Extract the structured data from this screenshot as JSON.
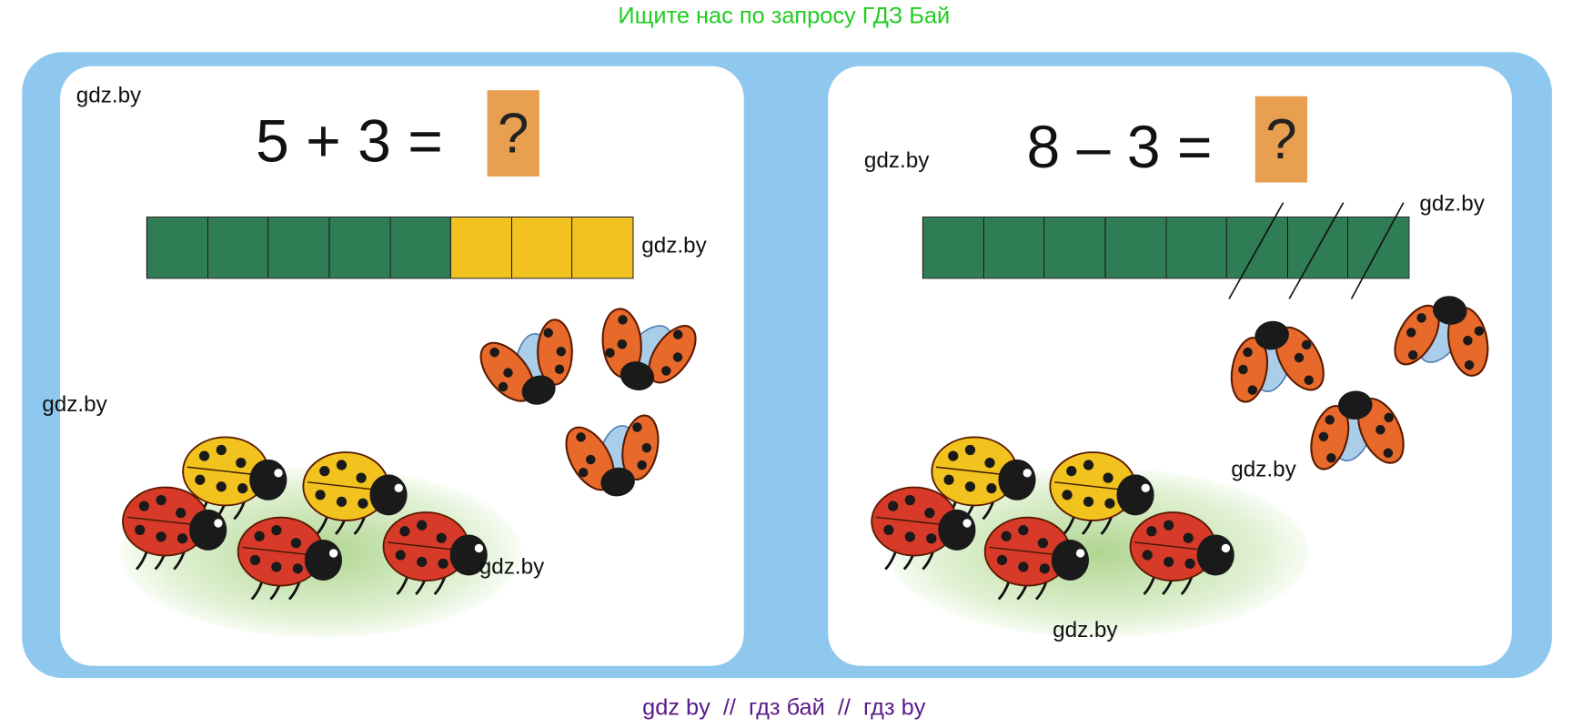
{
  "header": {
    "title": "Ищите нас по запросу ГДЗ Бай"
  },
  "footer": {
    "text": "gdz by  //  гдз бай  //  гдз by"
  },
  "colors": {
    "frame": "#8ec8ee",
    "green_cell": "#2e7d55",
    "yellow_cell": "#f2c21e",
    "question_box": "#e8a050",
    "title": "#22cc22",
    "footer": "#5a1a8a"
  },
  "left_card": {
    "equation": "5 + 3 =",
    "answer_placeholder": "?",
    "bar_cells": [
      "green",
      "green",
      "green",
      "green",
      "green",
      "yellow",
      "yellow",
      "yellow"
    ],
    "ladybugs_walking": 5,
    "ladybugs_flying": 3
  },
  "right_card": {
    "equation": "8 – 3 =",
    "answer_placeholder": "?",
    "bar_cells": [
      "green",
      "green",
      "green",
      "green",
      "green",
      "green",
      "green",
      "green"
    ],
    "crossed_out_cells": 3,
    "ladybugs_walking": 5,
    "ladybugs_flying": 3
  },
  "watermarks": [
    "gdz.by",
    "gdz.by",
    "gdz.by",
    "gdz.by",
    "gdz.by",
    "gdz.by",
    "gdz.by",
    "gdz.by"
  ]
}
